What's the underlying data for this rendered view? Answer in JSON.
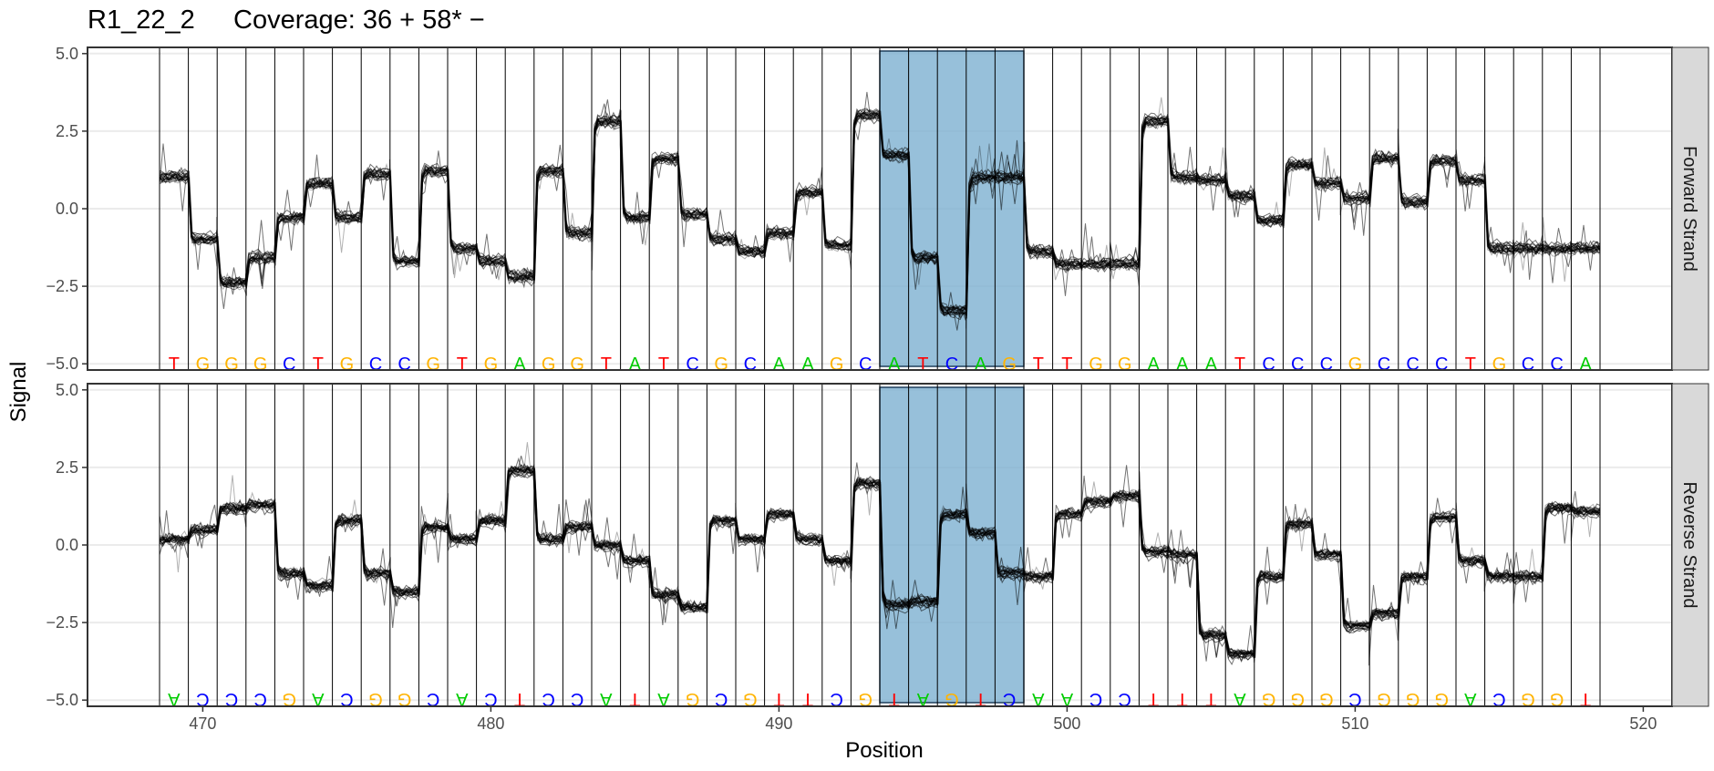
{
  "title": {
    "read_name": "R1_22_2",
    "coverage": "Coverage: 36 + 58* −"
  },
  "chart_data": {
    "type": "line",
    "xlabel": "Position",
    "ylabel": "Signal",
    "xlim": [
      466,
      521
    ],
    "ylim": [
      -5.2,
      5.2
    ],
    "x_ticks": [
      470,
      480,
      490,
      500,
      510,
      520
    ],
    "y_ticks": [
      5.0,
      2.5,
      0.0,
      -2.5,
      -5.0
    ],
    "y_tick_labels": [
      "5.0",
      "2.5",
      "0.0",
      "−2.5",
      "−5.0"
    ],
    "grid": true,
    "base_colors": {
      "A": "#00cc00",
      "C": "#0000ff",
      "G": "#ffb300",
      "T": "#ff0000"
    },
    "highlight": {
      "from": 493.5,
      "to": 498.5,
      "color": "#7aaed0"
    },
    "positions": [
      469,
      470,
      471,
      472,
      473,
      474,
      475,
      476,
      477,
      478,
      479,
      480,
      481,
      482,
      483,
      484,
      485,
      486,
      487,
      488,
      489,
      490,
      491,
      492,
      493,
      494,
      495,
      496,
      497,
      498,
      499,
      500,
      501,
      502,
      503,
      504,
      505,
      506,
      507,
      508,
      509,
      510,
      511,
      512,
      513,
      514,
      515,
      516,
      517,
      518
    ],
    "panels": [
      {
        "strip": "Forward Strand",
        "flipped": false,
        "bases": [
          "T",
          "G",
          "G",
          "G",
          "C",
          "T",
          "G",
          "C",
          "C",
          "G",
          "T",
          "G",
          "A",
          "G",
          "G",
          "T",
          "A",
          "T",
          "C",
          "G",
          "C",
          "A",
          "A",
          "G",
          "C",
          "A",
          "T",
          "C",
          "A",
          "G",
          "T",
          "T",
          "G",
          "G",
          "A",
          "A",
          "A",
          "T",
          "C",
          "C",
          "C",
          "G",
          "C",
          "C",
          "C",
          "T",
          "G",
          "C",
          "C",
          "A"
        ],
        "series": [
          {
            "name": "mean signal",
            "values": [
              1.0,
              -1.0,
              -2.4,
              -1.6,
              -0.3,
              0.8,
              -0.3,
              1.1,
              -1.7,
              1.2,
              -1.3,
              -1.7,
              -2.2,
              1.2,
              -0.8,
              2.8,
              -0.3,
              1.6,
              -0.2,
              -1.0,
              -1.4,
              -0.8,
              0.5,
              -1.2,
              3.0,
              1.7,
              -1.6,
              -3.3,
              1.0,
              1.0,
              -1.4,
              -1.8,
              -1.8,
              -1.8,
              2.8,
              1.0,
              0.9,
              0.4,
              -0.4,
              1.4,
              0.8,
              0.3,
              1.6,
              0.2,
              1.5,
              0.9,
              -1.3,
              -1.3,
              -1.3,
              -1.3
            ]
          }
        ]
      },
      {
        "strip": "Reverse Strand",
        "flipped": true,
        "bases": [
          "A",
          "C",
          "C",
          "C",
          "G",
          "A",
          "C",
          "G",
          "G",
          "C",
          "A",
          "C",
          "T",
          "C",
          "C",
          "A",
          "T",
          "A",
          "G",
          "C",
          "G",
          "T",
          "T",
          "C",
          "G",
          "T",
          "A",
          "G",
          "T",
          "C",
          "A",
          "A",
          "C",
          "C",
          "T",
          "T",
          "T",
          "A",
          "G",
          "G",
          "G",
          "C",
          "G",
          "G",
          "G",
          "A",
          "C",
          "G",
          "G",
          "T"
        ],
        "series": [
          {
            "name": "mean signal",
            "values": [
              0.2,
              0.5,
              1.2,
              1.3,
              -0.9,
              -1.3,
              0.8,
              -0.9,
              -1.5,
              0.6,
              0.2,
              0.8,
              2.4,
              0.2,
              0.6,
              0.0,
              -0.5,
              -1.6,
              -2.0,
              0.8,
              0.2,
              1.0,
              0.2,
              -0.5,
              2.0,
              -1.9,
              -1.8,
              1.0,
              0.4,
              -0.9,
              -1.0,
              1.0,
              1.4,
              1.6,
              -0.2,
              -0.3,
              -2.9,
              -3.5,
              -1.0,
              0.7,
              -0.3,
              -2.6,
              -2.2,
              -1.0,
              0.9,
              -0.5,
              -1.0,
              -1.0,
              1.2,
              1.1
            ]
          }
        ]
      }
    ]
  }
}
